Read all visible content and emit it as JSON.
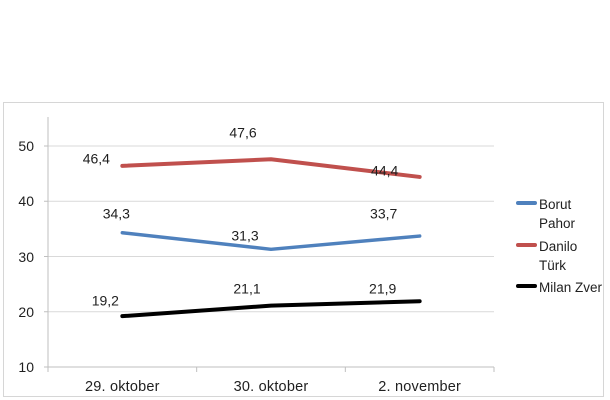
{
  "chart_data": {
    "type": "line",
    "title": "",
    "xlabel": "",
    "ylabel": "",
    "categories": [
      "29. oktober",
      "30. oktober",
      "2. november"
    ],
    "series": [
      {
        "name": "Borut Pahor",
        "color": "#4F81BD",
        "values": [
          34.3,
          31.3,
          33.7
        ],
        "labels": [
          "34,3",
          "31,3",
          "33,7"
        ]
      },
      {
        "name": "Danilo Türk",
        "color": "#C0504D",
        "values": [
          46.4,
          47.6,
          44.4
        ],
        "labels": [
          "46,4",
          "47,6",
          "44,4"
        ]
      },
      {
        "name": "Milan Zver",
        "color": "#000000",
        "values": [
          19.2,
          21.1,
          21.9
        ],
        "labels": [
          "19,2",
          "21,1",
          "21,9"
        ]
      }
    ],
    "yticks": [
      10,
      20,
      30,
      40,
      50
    ],
    "ytick_labels": [
      "10",
      "20",
      "30",
      "40",
      "50"
    ],
    "ylim": [
      10,
      55
    ],
    "grid": true,
    "legend_position": "right",
    "decimal_separator": ",",
    "data_labels_shown": true
  },
  "colors": {
    "gridline": "#d9d9d9",
    "axis_line": "#bfbfbf",
    "frame_border": "#d6d6d6",
    "text": "#1f1f1f",
    "background": "#ffffff"
  }
}
